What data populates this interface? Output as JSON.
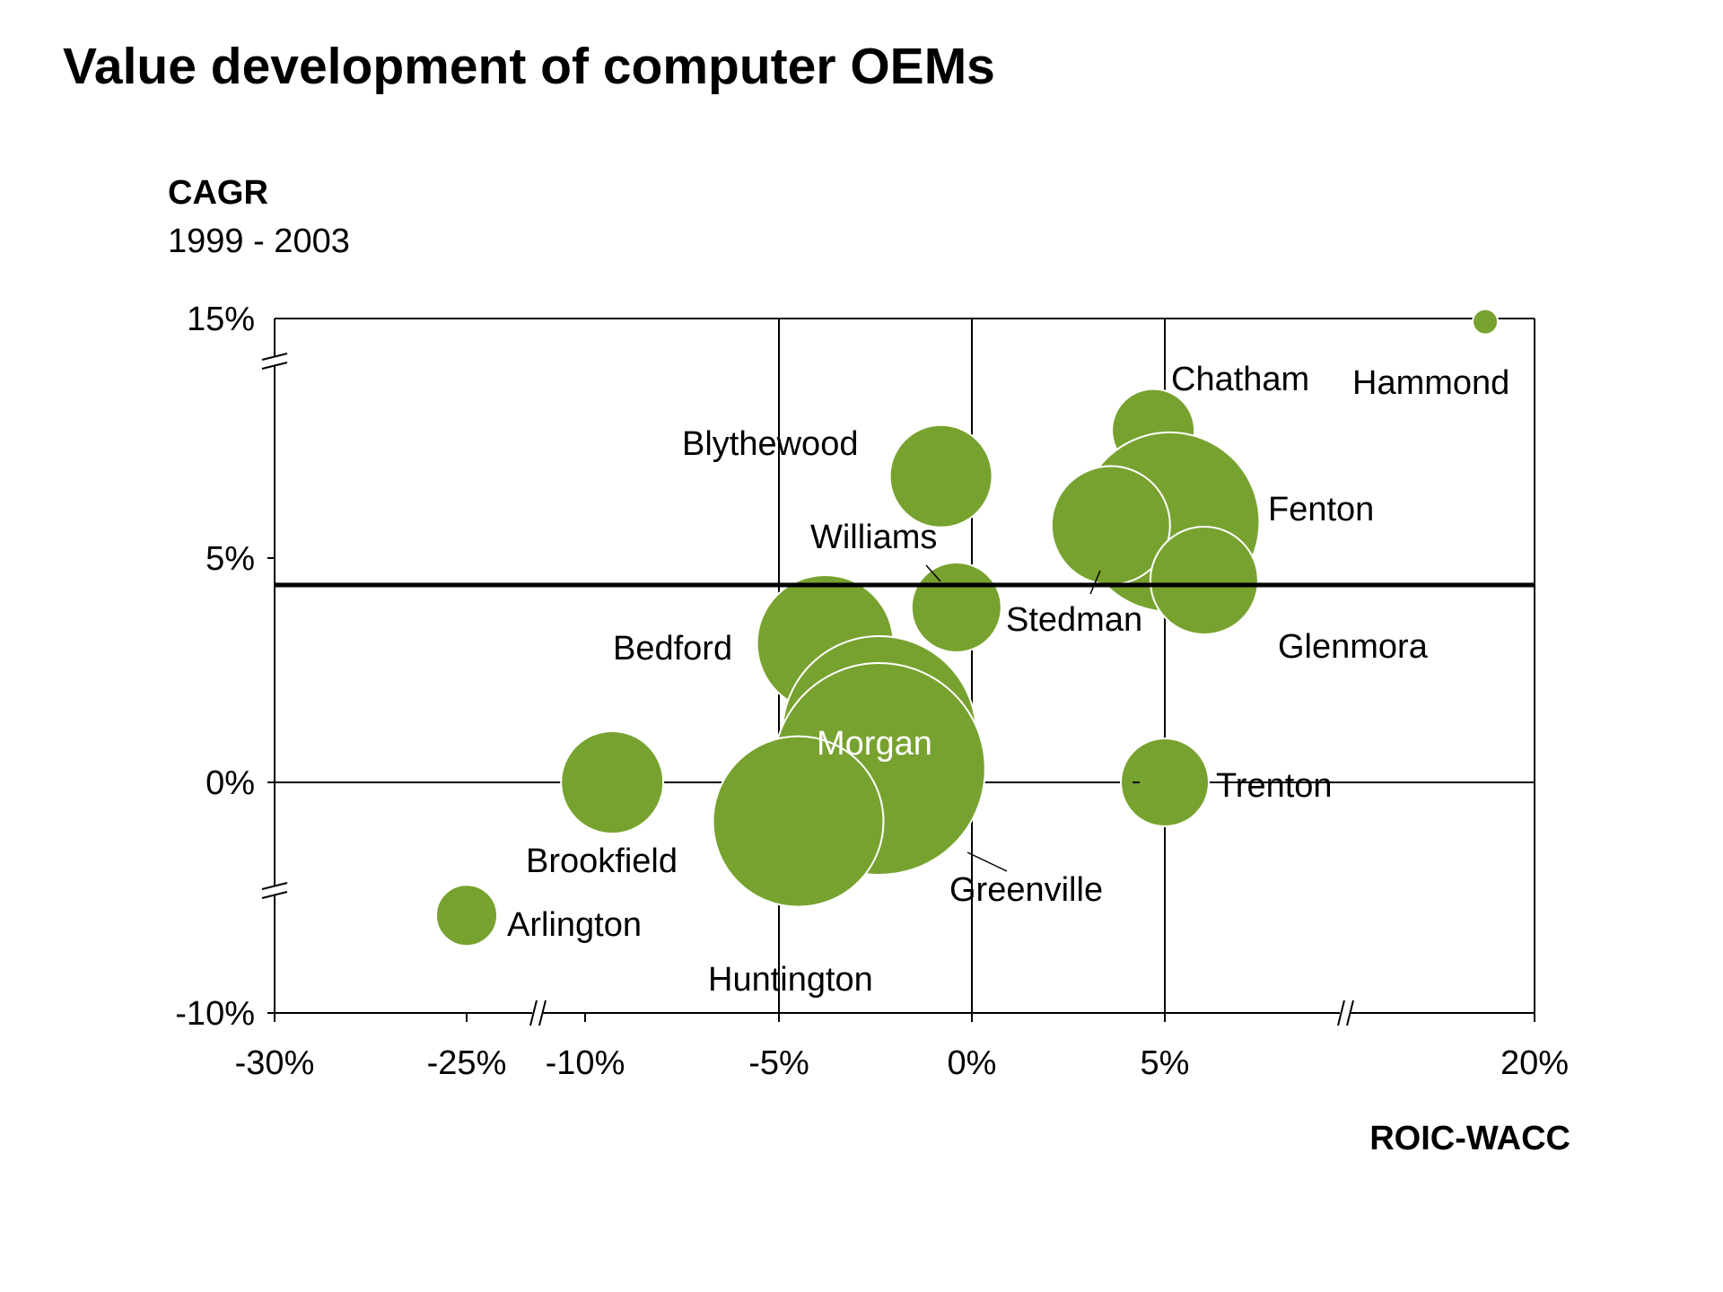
{
  "chart_data": {
    "type": "scatter",
    "title": "Value development of computer OEMs",
    "ylabel": "CAGR",
    "ylabel_sub": "1999 - 2003",
    "xlabel": "ROIC-WACC",
    "x_ticks": [
      "-30%",
      "-25%",
      "-10%",
      "-5%",
      "0%",
      "5%",
      "20%"
    ],
    "y_ticks": [
      "15%",
      "5%",
      "0%",
      "-10%"
    ],
    "axis_breaks": {
      "x": true,
      "y": true
    },
    "reference_line": {
      "axis": "y",
      "value": 4.4
    },
    "color": "#78A22F",
    "points": [
      {
        "label": "Hammond",
        "x": 18.0,
        "y": 14.7
      },
      {
        "label": "Chatham",
        "x": 4.7,
        "y": 8.9
      },
      {
        "label": "Blythewood",
        "x": -0.8,
        "y": 7.5
      },
      {
        "label": "Fenton",
        "x": 5.2,
        "y": 6.1
      },
      {
        "label": "Stedman",
        "x": 3.6,
        "y": 6.0
      },
      {
        "label": "Glenmora",
        "x": 6.6,
        "y": 4.5
      },
      {
        "label": "Williams",
        "x": -0.4,
        "y": 3.9
      },
      {
        "label": "Bedford",
        "x": -3.8,
        "y": 3.1
      },
      {
        "label": "Morgan",
        "x": -2.4,
        "y": 1.1
      },
      {
        "label": "Greenville",
        "x": -2.4,
        "y": 0.3
      },
      {
        "label": "Brookfield",
        "x": -9.3,
        "y": 0.0
      },
      {
        "label": "Trenton",
        "x": 5.0,
        "y": 0.0
      },
      {
        "label": "Huntington",
        "x": -4.5,
        "y": -1.8
      },
      {
        "label": "Arlington",
        "x": -25.0,
        "y": -6.0
      }
    ]
  }
}
